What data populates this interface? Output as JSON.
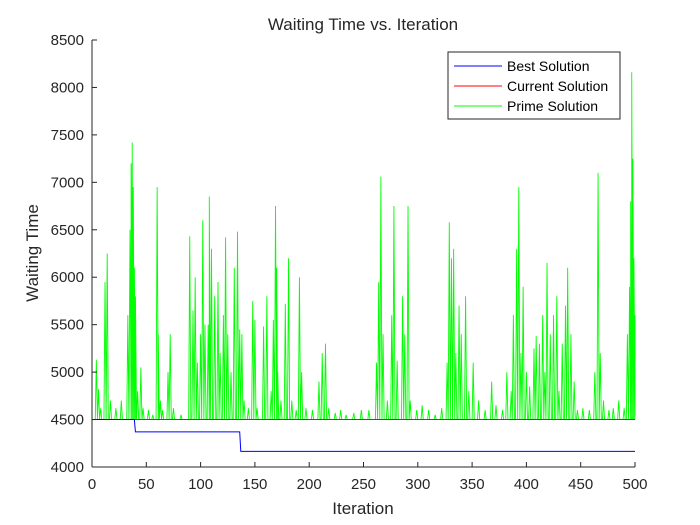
{
  "chart_data": {
    "type": "line",
    "title": "Waiting Time vs. Iteration",
    "xlabel": "Iteration",
    "ylabel": "Waiting Time",
    "xlim": [
      0,
      500
    ],
    "ylim": [
      4000,
      8500
    ],
    "xticks": [
      0,
      50,
      100,
      150,
      200,
      250,
      300,
      350,
      400,
      450,
      500
    ],
    "yticks": [
      4000,
      4500,
      5000,
      5500,
      6000,
      6500,
      7000,
      7500,
      8000,
      8500
    ],
    "legend_position": "top-right",
    "series": [
      {
        "name": "Best Solution",
        "color": "#0000ff",
        "x": [
          0,
          39,
          40,
          136,
          137,
          500
        ],
        "y": [
          4500,
          4500,
          4370,
          4370,
          4165,
          4165
        ]
      },
      {
        "name": "Current Solution",
        "color": "#ff0000",
        "x": [
          0,
          500
        ],
        "y": [
          4500,
          4500
        ]
      },
      {
        "name": "Prime Solution",
        "color": "#00ff00",
        "baseline": 4500,
        "spikes": [
          [
            4,
            5130
          ],
          [
            6,
            4820
          ],
          [
            8,
            4620
          ],
          [
            12,
            5950
          ],
          [
            14,
            6250
          ],
          [
            17,
            4700
          ],
          [
            22,
            4620
          ],
          [
            27,
            4700
          ],
          [
            33,
            5600
          ],
          [
            35,
            6500
          ],
          [
            36,
            7200
          ],
          [
            37,
            7420
          ],
          [
            38,
            6950
          ],
          [
            39,
            6100
          ],
          [
            40,
            5800
          ],
          [
            42,
            4800
          ],
          [
            45,
            5050
          ],
          [
            47,
            4620
          ],
          [
            52,
            4600
          ],
          [
            56,
            4550
          ],
          [
            60,
            6950
          ],
          [
            61,
            5400
          ],
          [
            63,
            4700
          ],
          [
            65,
            4600
          ],
          [
            70,
            5000
          ],
          [
            72,
            5400
          ],
          [
            75,
            4620
          ],
          [
            82,
            4550
          ],
          [
            90,
            6430
          ],
          [
            93,
            5650
          ],
          [
            95,
            6000
          ],
          [
            97,
            5100
          ],
          [
            100,
            5400
          ],
          [
            102,
            6600
          ],
          [
            104,
            5500
          ],
          [
            107,
            5500
          ],
          [
            108,
            6850
          ],
          [
            110,
            6300
          ],
          [
            113,
            5800
          ],
          [
            116,
            5950
          ],
          [
            118,
            5200
          ],
          [
            121,
            5600
          ],
          [
            123,
            6420
          ],
          [
            125,
            5400
          ],
          [
            128,
            5000
          ],
          [
            131,
            6100
          ],
          [
            134,
            6480
          ],
          [
            136,
            5450
          ],
          [
            138,
            5400
          ],
          [
            140,
            4700
          ],
          [
            144,
            4620
          ],
          [
            148,
            5750
          ],
          [
            150,
            5550
          ],
          [
            152,
            4620
          ],
          [
            158,
            5480
          ],
          [
            161,
            5800
          ],
          [
            165,
            4800
          ],
          [
            167,
            5550
          ],
          [
            169,
            6750
          ],
          [
            170,
            6100
          ],
          [
            171,
            5000
          ],
          [
            174,
            4700
          ],
          [
            178,
            5720
          ],
          [
            181,
            6200
          ],
          [
            184,
            4700
          ],
          [
            188,
            4600
          ],
          [
            191,
            6000
          ],
          [
            193,
            5000
          ],
          [
            197,
            4620
          ],
          [
            203,
            4600
          ],
          [
            209,
            4900
          ],
          [
            212,
            5200
          ],
          [
            215,
            5300
          ],
          [
            218,
            4620
          ],
          [
            224,
            4570
          ],
          [
            229,
            4600
          ],
          [
            234,
            4550
          ],
          [
            241,
            4570
          ],
          [
            248,
            4600
          ],
          [
            255,
            4600
          ],
          [
            262,
            5100
          ],
          [
            264,
            5950
          ],
          [
            266,
            7060
          ],
          [
            268,
            5400
          ],
          [
            272,
            4700
          ],
          [
            276,
            5600
          ],
          [
            278,
            6750
          ],
          [
            281,
            5120
          ],
          [
            286,
            5800
          ],
          [
            288,
            5400
          ],
          [
            291,
            6750
          ],
          [
            293,
            4700
          ],
          [
            299,
            4600
          ],
          [
            304,
            4650
          ],
          [
            310,
            4600
          ],
          [
            316,
            4550
          ],
          [
            322,
            4620
          ],
          [
            327,
            5100
          ],
          [
            329,
            6580
          ],
          [
            331,
            6200
          ],
          [
            333,
            6300
          ],
          [
            335,
            5200
          ],
          [
            338,
            5700
          ],
          [
            340,
            5400
          ],
          [
            344,
            5800
          ],
          [
            347,
            4800
          ],
          [
            351,
            5100
          ],
          [
            356,
            4700
          ],
          [
            362,
            4600
          ],
          [
            368,
            4900
          ],
          [
            372,
            4650
          ],
          [
            378,
            4600
          ],
          [
            382,
            5000
          ],
          [
            386,
            4800
          ],
          [
            388,
            5600
          ],
          [
            391,
            6300
          ],
          [
            393,
            6950
          ],
          [
            395,
            5200
          ],
          [
            397,
            5900
          ],
          [
            400,
            5000
          ],
          [
            403,
            4850
          ],
          [
            407,
            5250
          ],
          [
            409,
            5380
          ],
          [
            412,
            5300
          ],
          [
            415,
            5600
          ],
          [
            417,
            5000
          ],
          [
            419,
            6150
          ],
          [
            422,
            5400
          ],
          [
            425,
            5600
          ],
          [
            428,
            5800
          ],
          [
            430,
            4800
          ],
          [
            433,
            5300
          ],
          [
            436,
            5700
          ],
          [
            438,
            6100
          ],
          [
            441,
            5400
          ],
          [
            444,
            4900
          ],
          [
            447,
            4600
          ],
          [
            452,
            4620
          ],
          [
            458,
            4600
          ],
          [
            463,
            5000
          ],
          [
            466,
            7100
          ],
          [
            468,
            5200
          ],
          [
            471,
            4700
          ],
          [
            476,
            4600
          ],
          [
            480,
            4620
          ],
          [
            485,
            4700
          ],
          [
            490,
            4620
          ],
          [
            493,
            5400
          ],
          [
            495,
            5900
          ],
          [
            496,
            6800
          ],
          [
            497,
            8160
          ],
          [
            498,
            7250
          ],
          [
            499,
            6200
          ],
          [
            500,
            5600
          ]
        ]
      }
    ]
  }
}
